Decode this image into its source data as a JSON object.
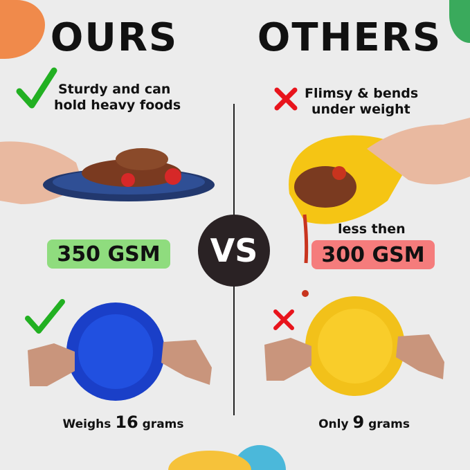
{
  "left": {
    "heading": "OURS",
    "claim_line1": "Sturdy and can",
    "claim_line2": "hold heavy foods",
    "gsm_badge": "350 GSM",
    "weight_prefix": "Weighs",
    "weight_value": "16",
    "weight_suffix": "grams",
    "icon": "check-icon"
  },
  "right": {
    "heading": "OTHERS",
    "claim_line1": "Flimsy & bends",
    "claim_line2": "under weight",
    "gsm_note": "less then",
    "gsm_badge": "300 GSM",
    "weight_prefix": "Only",
    "weight_value": "9",
    "weight_suffix": "grams",
    "icon": "cross-icon"
  },
  "center": {
    "vs_label": "VS"
  },
  "colors": {
    "background": "#ececec",
    "check": "#22b022",
    "cross": "#e8141c",
    "gsm_good": "#8fdc7e",
    "gsm_bad": "#f57c7c",
    "ours_plate": "#1f47d6",
    "others_plate": "#f9c818",
    "vs_circle": "#2a2224"
  }
}
